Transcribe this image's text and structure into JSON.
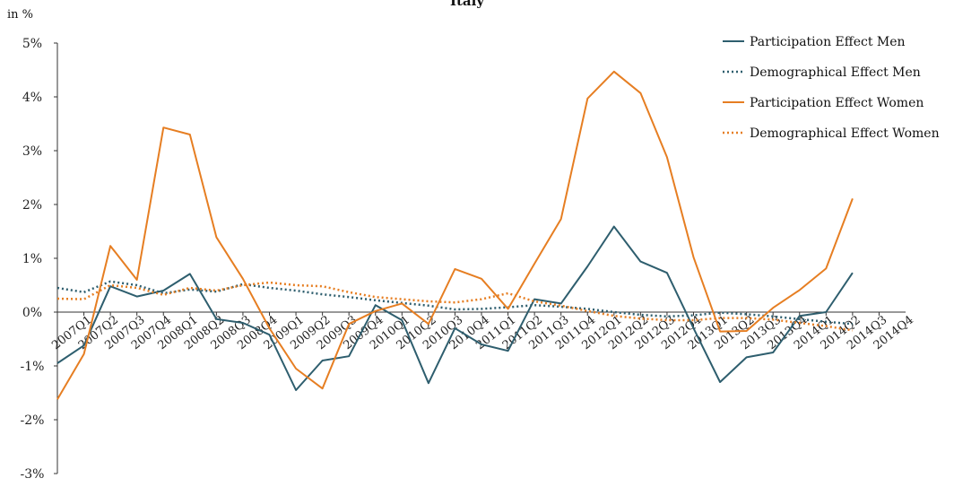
{
  "chart_data": {
    "type": "line",
    "title": "Italy",
    "ylabel": "in %",
    "ylim": [
      -3,
      5
    ],
    "yticks": [
      5,
      4,
      3,
      2,
      1,
      0,
      -1,
      -2,
      -3
    ],
    "ytick_labels": [
      "5%",
      "4%",
      "3%",
      "2%",
      "1%",
      "0%",
      "-1%",
      "-2%",
      "-3%"
    ],
    "categories": [
      "2007Q1",
      "2007Q2",
      "2007Q3",
      "2007Q4",
      "2008Q1",
      "2008Q2",
      "2008Q3",
      "2008Q4",
      "2009Q1",
      "2009Q2",
      "2009Q3",
      "2009Q4",
      "2010Q1",
      "2010Q2",
      "2010Q3",
      "2010Q4",
      "2011Q1",
      "2011Q2",
      "2011Q3",
      "2011Q4",
      "2012Q1",
      "2012Q2",
      "2012Q3",
      "2012Q4",
      "2013Q1",
      "2013Q2",
      "2013Q3",
      "2013Q4",
      "2014Q1",
      "2014Q2",
      "2014Q3",
      "2014Q4"
    ],
    "grid": false,
    "legend_position": "top-right",
    "series": [
      {
        "name": "Participation Effect Men",
        "color": "#2e5e6e",
        "style": "solid",
        "values": [
          -0.95,
          -0.62,
          0.48,
          0.29,
          0.4,
          0.71,
          -0.13,
          -0.2,
          -0.42,
          -1.45,
          -0.9,
          -0.82,
          0.13,
          -0.15,
          -1.32,
          -0.3,
          -0.6,
          -0.72,
          0.24,
          0.16,
          0.85,
          1.59,
          0.94,
          0.73,
          -0.3,
          -1.3,
          -0.84,
          -0.75,
          -0.07,
          0.0,
          0.73,
          null
        ]
      },
      {
        "name": "Demographical Effect Men",
        "color": "#2e5e6e",
        "style": "dotted",
        "values": [
          0.45,
          0.37,
          0.57,
          0.5,
          0.35,
          0.42,
          0.38,
          0.52,
          0.45,
          0.4,
          0.33,
          0.28,
          0.22,
          0.17,
          0.12,
          0.05,
          0.06,
          0.09,
          0.13,
          0.1,
          0.06,
          0.0,
          -0.05,
          -0.08,
          -0.06,
          -0.01,
          -0.04,
          -0.08,
          -0.13,
          -0.18,
          -0.22,
          null
        ]
      },
      {
        "name": "Participation Effect Women",
        "color": "#e67e22",
        "style": "solid",
        "values": [
          -1.62,
          -0.78,
          1.23,
          0.6,
          3.43,
          3.3,
          1.39,
          0.62,
          -0.3,
          -1.05,
          -1.42,
          -0.22,
          0.02,
          0.16,
          -0.22,
          0.8,
          0.62,
          0.06,
          0.9,
          1.73,
          3.97,
          4.47,
          4.07,
          2.88,
          1.02,
          -0.36,
          -0.35,
          0.08,
          0.41,
          0.81,
          2.11,
          null
        ]
      },
      {
        "name": "Demographical Effect Women",
        "color": "#e67e22",
        "style": "dotted",
        "values": [
          0.25,
          0.24,
          0.5,
          0.45,
          0.32,
          0.45,
          0.4,
          0.5,
          0.55,
          0.5,
          0.48,
          0.37,
          0.28,
          0.24,
          0.2,
          0.18,
          0.24,
          0.35,
          0.2,
          0.12,
          0.02,
          -0.07,
          -0.12,
          -0.15,
          -0.15,
          -0.11,
          -0.11,
          -0.14,
          -0.2,
          -0.26,
          -0.34,
          null
        ]
      }
    ]
  }
}
